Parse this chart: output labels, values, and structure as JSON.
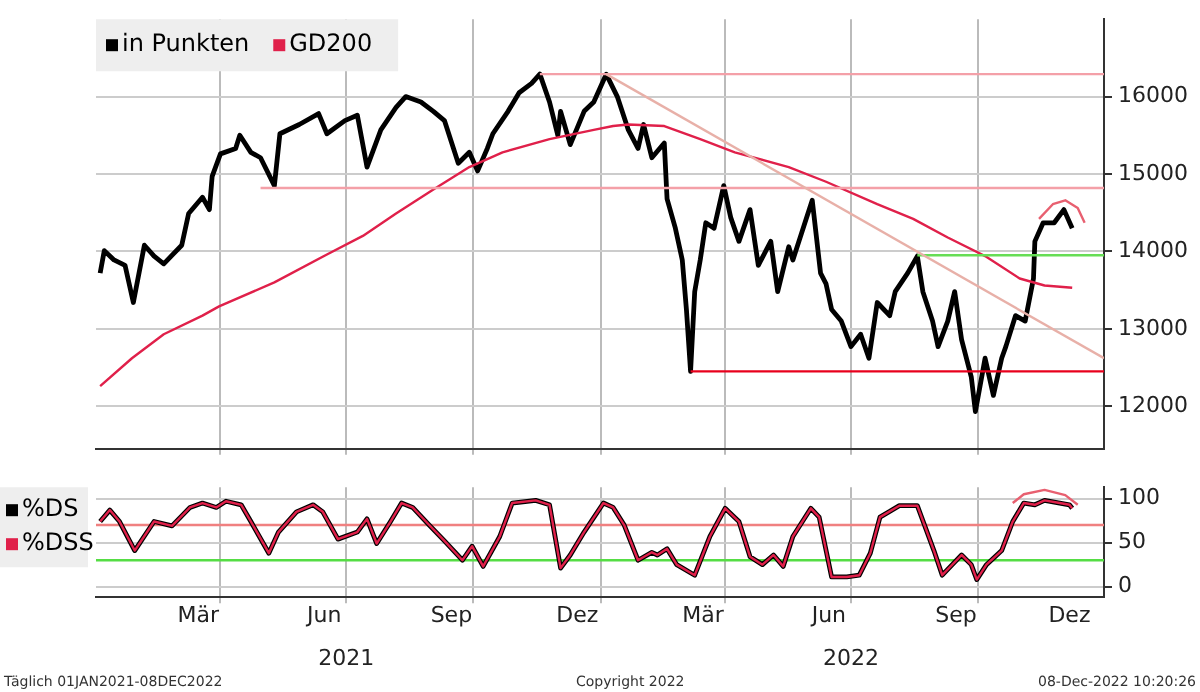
{
  "chart_data": [
    {
      "type": "line",
      "xlim": [
        "2021-01-01",
        "2022-12-31"
      ],
      "ylim": [
        11450,
        17000
      ],
      "yticks": [
        12000,
        13000,
        14000,
        15000,
        16000
      ],
      "xticks": [
        {
          "value": "2021-04-01",
          "label": null
        },
        {
          "value": "2021-07-01",
          "label": null
        },
        {
          "value": "2021-10-01",
          "label": null
        },
        {
          "value": "2022-01-01",
          "label": null
        },
        {
          "value": "2022-04-01",
          "label": null
        },
        {
          "value": "2022-07-01",
          "label": null
        },
        {
          "value": "2022-10-01",
          "label": null
        }
      ],
      "tick_labels": "y",
      "grid": true,
      "legend": "top left",
      "series": [
        {
          "name": "in Punkten",
          "color": "#000000",
          "x": [
            "2021-01-04",
            "2021-01-07",
            "2021-01-14",
            "2021-01-22",
            "2021-01-28",
            "2021-02-05",
            "2021-02-12",
            "2021-02-19",
            "2021-03-04",
            "2021-03-09",
            "2021-03-19",
            "2021-03-24",
            "2021-03-26",
            "2021-04-01",
            "2021-04-12",
            "2021-04-15",
            "2021-04-23",
            "2021-04-30",
            "2021-05-10",
            "2021-05-14",
            "2021-05-28",
            "2021-06-11",
            "2021-06-17",
            "2021-06-30",
            "2021-07-09",
            "2021-07-16",
            "2021-07-26",
            "2021-08-06",
            "2021-08-13",
            "2021-08-24",
            "2021-09-02",
            "2021-09-10",
            "2021-09-20",
            "2021-09-28",
            "2021-10-04",
            "2021-10-11",
            "2021-10-15",
            "2021-10-26",
            "2021-11-03",
            "2021-11-12",
            "2021-11-18",
            "2021-11-25",
            "2021-12-01",
            "2021-12-03",
            "2021-12-10",
            "2021-12-20",
            "2021-12-27",
            "2022-01-05",
            "2022-01-13",
            "2022-01-21",
            "2022-01-28",
            "2022-02-01",
            "2022-02-07",
            "2022-02-16",
            "2022-02-18",
            "2022-02-24",
            "2022-03-01",
            "2022-03-04",
            "2022-03-07",
            "2022-03-10",
            "2022-03-14",
            "2022-03-18",
            "2022-03-24",
            "2022-03-31",
            "2022-04-05",
            "2022-04-11",
            "2022-04-19",
            "2022-04-25",
            "2022-05-04",
            "2022-05-09",
            "2022-05-17",
            "2022-05-20",
            "2022-05-30",
            "2022-06-03",
            "2022-06-09",
            "2022-06-13",
            "2022-06-17",
            "2022-06-24",
            "2022-07-01",
            "2022-07-08",
            "2022-07-14",
            "2022-07-20",
            "2022-07-29",
            "2022-08-02",
            "2022-08-11",
            "2022-08-18",
            "2022-08-22",
            "2022-08-29",
            "2022-09-02",
            "2022-09-09",
            "2022-09-14",
            "2022-09-19",
            "2022-09-26",
            "2022-09-29",
            "2022-10-06",
            "2022-10-12",
            "2022-10-18",
            "2022-10-21",
            "2022-10-28",
            "2022-11-04",
            "2022-11-10",
            "2022-11-11",
            "2022-11-17",
            "2022-11-25",
            "2022-12-02",
            "2022-12-08"
          ],
          "values": [
            13720,
            14010,
            13890,
            13820,
            13340,
            14080,
            13940,
            13840,
            14080,
            14490,
            14700,
            14540,
            14970,
            15260,
            15330,
            15500,
            15280,
            15210,
            14850,
            15520,
            15640,
            15780,
            15520,
            15690,
            15760,
            15090,
            15570,
            15860,
            16000,
            15930,
            15810,
            15690,
            15140,
            15280,
            15040,
            15330,
            15520,
            15810,
            16050,
            16170,
            16290,
            15930,
            15500,
            15810,
            15380,
            15810,
            15930,
            16290,
            16000,
            15570,
            15330,
            15640,
            15210,
            15400,
            14680,
            14300,
            13890,
            13250,
            12450,
            13480,
            13890,
            14370,
            14300,
            14850,
            14440,
            14130,
            14540,
            13820,
            14130,
            13480,
            14060,
            13890,
            14440,
            14660,
            13720,
            13580,
            13250,
            13100,
            12770,
            12930,
            12620,
            13340,
            13170,
            13480,
            13720,
            13940,
            13480,
            13100,
            12770,
            13100,
            13480,
            12860,
            12380,
            11930,
            12620,
            12140,
            12620,
            12770,
            13170,
            13100,
            13650,
            14130,
            14370,
            14370,
            14540,
            14300
          ]
        },
        {
          "name": "GD200",
          "color": "#e0204a",
          "x": [
            "2021-01-04",
            "2021-01-27",
            "2021-02-19",
            "2021-03-19",
            "2021-03-31",
            "2021-05-10",
            "2021-06-17",
            "2021-07-13",
            "2021-08-06",
            "2021-09-02",
            "2021-09-28",
            "2021-10-22",
            "2021-11-25",
            "2021-12-27",
            "2022-01-10",
            "2022-01-21",
            "2022-02-16",
            "2022-03-14",
            "2022-04-08",
            "2022-05-17",
            "2022-06-13",
            "2022-07-20",
            "2022-08-15",
            "2022-09-09",
            "2022-10-06",
            "2022-10-31",
            "2022-11-18",
            "2022-12-08"
          ],
          "values": [
            12260,
            12620,
            12930,
            13170,
            13290,
            13600,
            13960,
            14200,
            14490,
            14800,
            15090,
            15280,
            15450,
            15570,
            15620,
            15640,
            15620,
            15450,
            15280,
            15090,
            14900,
            14610,
            14420,
            14180,
            13940,
            13650,
            13560,
            13530
          ]
        },
        {
          "type": "line",
          "color": "#f4a0a8",
          "x": [
            "2021-11-18",
            "2022-12-31"
          ],
          "values": [
            16290,
            16290
          ]
        },
        {
          "type": "line",
          "color": "#f4a0a8",
          "x": [
            "2021-04-30",
            "2022-12-31"
          ],
          "values": [
            14820,
            14820
          ]
        },
        {
          "type": "line",
          "color": "#e8001c",
          "x": [
            "2022-03-07",
            "2022-12-31"
          ],
          "values": [
            12450,
            12450
          ]
        },
        {
          "type": "line",
          "color": "#66dd55",
          "x": [
            "2022-08-18",
            "2022-12-31"
          ],
          "values": [
            13950,
            13950
          ]
        },
        {
          "type": "line",
          "color": "#e8b0a8",
          "x": [
            "2022-01-05",
            "2022-12-31"
          ],
          "values": [
            16290,
            12620
          ]
        },
        {
          "type": "line",
          "color": "#e86070",
          "x": [
            "2022-11-14",
            "2022-11-24",
            "2022-12-03",
            "2022-12-12",
            "2022-12-17"
          ],
          "values": [
            14420,
            14610,
            14660,
            14560,
            14370
          ]
        }
      ]
    },
    {
      "type": "line",
      "xlim": [
        "2021-01-01",
        "2022-12-31"
      ],
      "ylim": [
        -12,
        113
      ],
      "yticks": [
        0,
        50,
        100
      ],
      "xticks": [
        {
          "value": "2021-03-16",
          "label": "Mär"
        },
        {
          "value": "2021-04-01",
          "label": null
        },
        {
          "value": "2021-06-15",
          "label": "Jun"
        },
        {
          "value": "2021-07-01",
          "label": null
        },
        {
          "value": "2021-09-15",
          "label": "Sep"
        },
        {
          "value": "2021-10-01",
          "label": null
        },
        {
          "value": "2021-12-15",
          "label": "Dez"
        },
        {
          "value": "2022-01-01",
          "label": null
        },
        {
          "value": "2022-03-16",
          "label": "Mär"
        },
        {
          "value": "2022-04-01",
          "label": null
        },
        {
          "value": "2022-06-15",
          "label": "Jun"
        },
        {
          "value": "2022-07-01",
          "label": null
        },
        {
          "value": "2022-09-15",
          "label": "Sep"
        },
        {
          "value": "2022-10-01",
          "label": null
        },
        {
          "value": "2022-12-06",
          "label": "Dez"
        }
      ],
      "x2lim": [
        "2021-01-01",
        "2022-12-31"
      ],
      "x2ticks": [
        {
          "value": "2021-07-01",
          "label": "2021"
        },
        {
          "value": "2022-07-01",
          "label": "2022"
        }
      ],
      "grid": true,
      "legend": "left",
      "ref_lines": [
        {
          "axis": "y",
          "value": 70,
          "color": "#f08080"
        },
        {
          "axis": "y",
          "value": 30,
          "color": "#55dd44"
        }
      ],
      "annotations": [
        "Täglich 01JAN2021-08DEC2022",
        "Copyright 2022",
        "08-Dec-2022 10:20:26"
      ],
      "series": [
        {
          "name": "%DS",
          "color": "#000000",
          "x": [
            "2021-01-04",
            "2021-01-11",
            "2021-01-18",
            "2021-01-29",
            "2021-02-12",
            "2021-02-25",
            "2021-03-10",
            "2021-03-19",
            "2021-03-29",
            "2021-04-05",
            "2021-04-16",
            "2021-04-23",
            "2021-05-06",
            "2021-05-13",
            "2021-05-26",
            "2021-06-07",
            "2021-06-14",
            "2021-06-25",
            "2021-07-09",
            "2021-07-16",
            "2021-07-23",
            "2021-08-02",
            "2021-08-10",
            "2021-08-18",
            "2021-08-30",
            "2021-09-10",
            "2021-09-23",
            "2021-09-30",
            "2021-10-08",
            "2021-10-20",
            "2021-10-29",
            "2021-11-15",
            "2021-11-25",
            "2021-11-29",
            "2021-12-03",
            "2021-12-10",
            "2021-12-20",
            "2022-01-03",
            "2022-01-10",
            "2022-01-18",
            "2022-01-28",
            "2022-02-07",
            "2022-02-11",
            "2022-02-18",
            "2022-02-25",
            "2022-03-10",
            "2022-03-21",
            "2022-04-01",
            "2022-04-11",
            "2022-04-19",
            "2022-04-28",
            "2022-05-06",
            "2022-05-13",
            "2022-05-20",
            "2022-06-02",
            "2022-06-08",
            "2022-06-17",
            "2022-06-28",
            "2022-07-07",
            "2022-07-15",
            "2022-07-22",
            "2022-08-05",
            "2022-08-18",
            "2022-08-30",
            "2022-09-05",
            "2022-09-19",
            "2022-09-26",
            "2022-09-30",
            "2022-10-07",
            "2022-10-18",
            "2022-10-26",
            "2022-11-03",
            "2022-11-11",
            "2022-11-18",
            "2022-11-29",
            "2022-12-06",
            "2022-12-08"
          ],
          "values": [
            74,
            87,
            74,
            41,
            74,
            69,
            90,
            95,
            90,
            97,
            93,
            74,
            38,
            62,
            85,
            93,
            85,
            54,
            62,
            77,
            49,
            74,
            95,
            90,
            70,
            52,
            30,
            46,
            23,
            57,
            95,
            98,
            93,
            57,
            21,
            36,
            62,
            95,
            90,
            70,
            30,
            39,
            36,
            43,
            25,
            13,
            57,
            89,
            74,
            34,
            25,
            36,
            23,
            57,
            89,
            79,
            11,
            11,
            13,
            38,
            79,
            92,
            92,
            41,
            13,
            36,
            25,
            8,
            25,
            41,
            74,
            95,
            93,
            98,
            95,
            93,
            89
          ]
        },
        {
          "name": "%DSS",
          "color": "#e0204a",
          "x": [
            "2021-01-04",
            "2021-01-11",
            "2021-01-18",
            "2021-01-29",
            "2021-02-12",
            "2021-02-25",
            "2021-03-10",
            "2021-03-19",
            "2021-03-29",
            "2021-04-05",
            "2021-04-16",
            "2021-04-23",
            "2021-05-06",
            "2021-05-13",
            "2021-05-26",
            "2021-06-07",
            "2021-06-14",
            "2021-06-25",
            "2021-07-09",
            "2021-07-16",
            "2021-07-23",
            "2021-08-02",
            "2021-08-10",
            "2021-08-18",
            "2021-08-30",
            "2021-09-10",
            "2021-09-23",
            "2021-09-30",
            "2021-10-08",
            "2021-10-20",
            "2021-10-29",
            "2021-11-15",
            "2021-11-25",
            "2021-11-29",
            "2021-12-03",
            "2021-12-10",
            "2021-12-20",
            "2022-01-03",
            "2022-01-10",
            "2022-01-18",
            "2022-01-28",
            "2022-02-07",
            "2022-02-11",
            "2022-02-18",
            "2022-02-25",
            "2022-03-10",
            "2022-03-21",
            "2022-04-01",
            "2022-04-11",
            "2022-04-19",
            "2022-04-28",
            "2022-05-06",
            "2022-05-13",
            "2022-05-20",
            "2022-06-02",
            "2022-06-08",
            "2022-06-17",
            "2022-06-28",
            "2022-07-07",
            "2022-07-15",
            "2022-07-22",
            "2022-08-05",
            "2022-08-18",
            "2022-08-30",
            "2022-09-05",
            "2022-09-19",
            "2022-09-26",
            "2022-09-30",
            "2022-10-07",
            "2022-10-18",
            "2022-10-26",
            "2022-11-03",
            "2022-11-11",
            "2022-11-18",
            "2022-11-29",
            "2022-12-06",
            "2022-12-08"
          ],
          "values": [
            74,
            87,
            74,
            41,
            74,
            69,
            90,
            95,
            90,
            97,
            93,
            74,
            38,
            62,
            85,
            93,
            85,
            54,
            62,
            77,
            49,
            74,
            95,
            90,
            70,
            52,
            30,
            46,
            23,
            57,
            95,
            98,
            93,
            57,
            21,
            36,
            62,
            95,
            90,
            70,
            30,
            39,
            36,
            43,
            25,
            13,
            57,
            89,
            74,
            34,
            25,
            36,
            23,
            57,
            89,
            79,
            11,
            11,
            13,
            38,
            79,
            92,
            92,
            41,
            13,
            36,
            25,
            8,
            25,
            41,
            74,
            95,
            93,
            98,
            95,
            93,
            89
          ]
        },
        {
          "type": "line",
          "color": "#e86070",
          "x": [
            "2022-10-26",
            "2022-11-03",
            "2022-11-18",
            "2022-12-03",
            "2022-12-12"
          ],
          "values": [
            95,
            105,
            110,
            104,
            93
          ]
        }
      ]
    }
  ]
}
